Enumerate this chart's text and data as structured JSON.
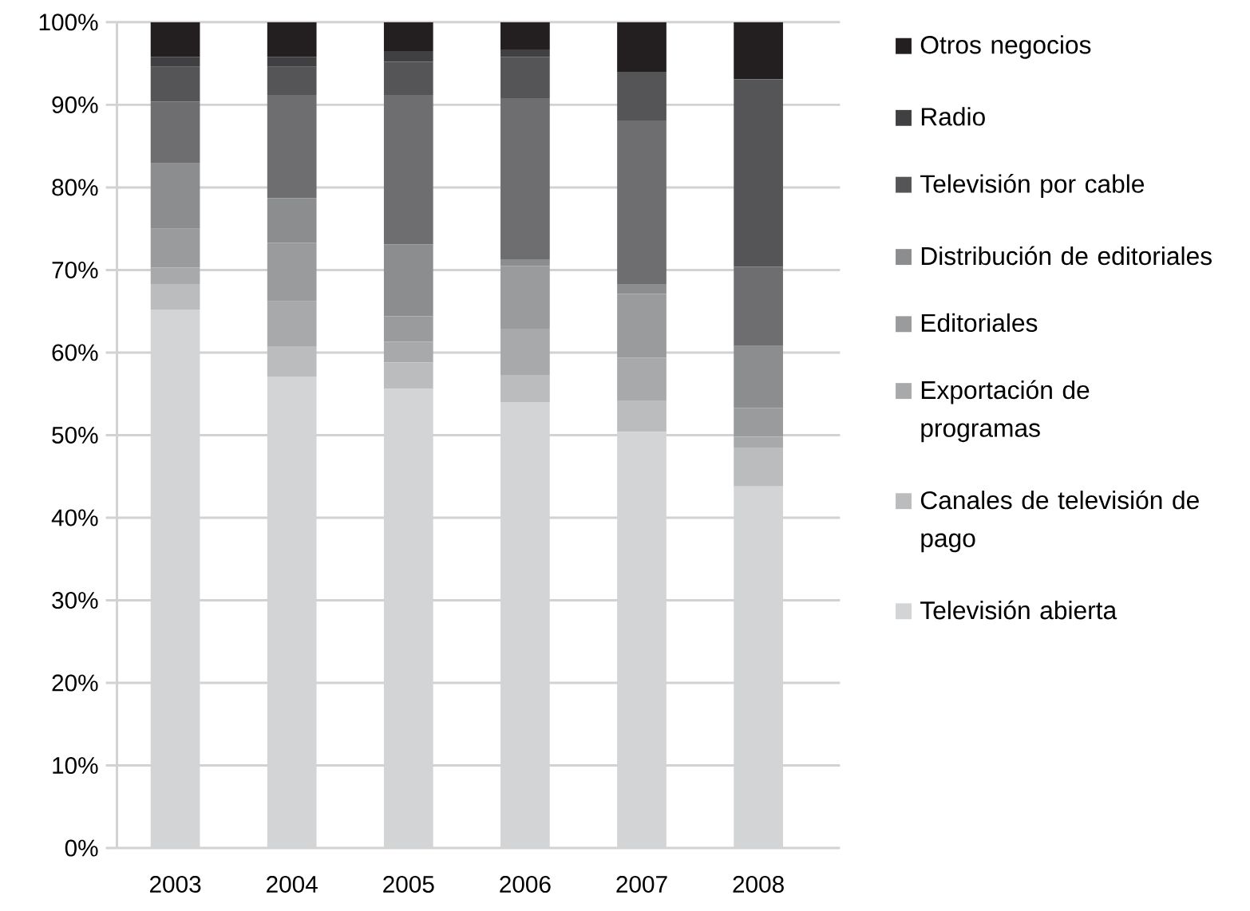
{
  "chart_data": {
    "type": "bar",
    "stacked": true,
    "categories": [
      "2003",
      "2004",
      "2005",
      "2006",
      "2007",
      "2008"
    ],
    "series": [
      {
        "name": "Televisión abierta",
        "color": "#d3d4d6",
        "values": [
          65.2,
          57.1,
          55.6,
          54.0,
          50.4,
          43.8
        ]
      },
      {
        "name": "Canales de televisión de pago",
        "color": "#bbbcbe",
        "values": [
          3.1,
          3.6,
          3.2,
          3.3,
          3.8,
          4.7
        ]
      },
      {
        "name": "Exportación de programas",
        "color": "#a8a9ab",
        "values": [
          2.0,
          5.5,
          2.5,
          5.6,
          5.2,
          1.3
        ]
      },
      {
        "name": "Editoriales",
        "color": "#9a9b9d",
        "values": [
          4.7,
          7.1,
          3.1,
          7.6,
          7.7,
          3.5
        ]
      },
      {
        "name": "Distribución de editoriales",
        "color": "#8c8d8f",
        "values": [
          7.9,
          5.4,
          8.7,
          0.8,
          1.2,
          7.5
        ]
      },
      {
        "color": "#6e6e70",
        "values": [
          7.5,
          12.5,
          18.1,
          19.5,
          19.8,
          9.6
        ]
      },
      {
        "name": "Televisión por cable",
        "color": "#555557",
        "values": [
          4.2,
          3.4,
          4.0,
          5.0,
          5.9,
          22.7
        ]
      },
      {
        "name": "Radio",
        "color": "#404042",
        "values": [
          1.2,
          1.2,
          1.3,
          0.9,
          0.0,
          0.0
        ]
      },
      {
        "name": "Otros negocios",
        "color": "#231f20",
        "values": [
          4.2,
          4.2,
          3.5,
          3.3,
          6.0,
          6.9
        ]
      }
    ],
    "ylim": [
      0,
      100
    ],
    "yticks": [
      {
        "value": 0,
        "label": "0%"
      },
      {
        "value": 10,
        "label": "10%"
      },
      {
        "value": 20,
        "label": "20%"
      },
      {
        "value": 30,
        "label": "30%"
      },
      {
        "value": 40,
        "label": "40%"
      },
      {
        "value": 50,
        "label": "50%"
      },
      {
        "value": 60,
        "label": "60%"
      },
      {
        "value": 70,
        "label": "70%"
      },
      {
        "value": 80,
        "label": "80%"
      },
      {
        "value": 90,
        "label": "90%"
      },
      {
        "value": 100,
        "label": "100%"
      }
    ],
    "grid": "y",
    "legend": "right"
  }
}
